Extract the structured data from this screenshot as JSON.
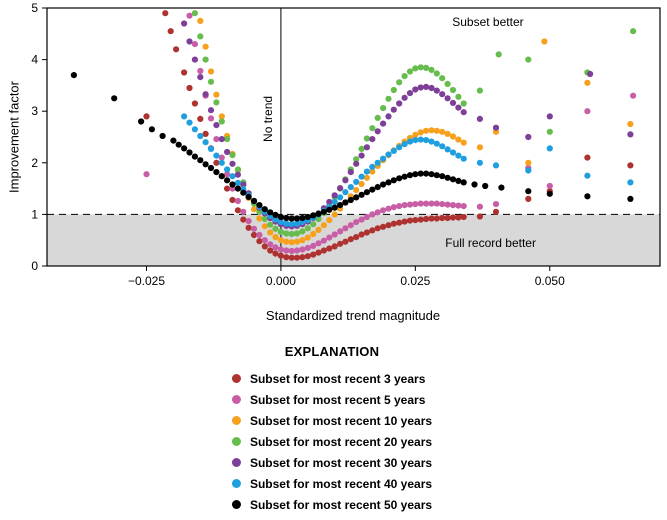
{
  "chart_data": {
    "type": "scatter",
    "title": "",
    "xlabel": "Standardized trend magnitude",
    "ylabel": "Improvement factor",
    "xlim": [
      -0.0435,
      0.0705
    ],
    "ylim": [
      0,
      5
    ],
    "xticks": {
      "values": [
        -0.025,
        0,
        0.025,
        0.05
      ],
      "labels": [
        "−0.025",
        "0.000",
        "0.025",
        "0.050"
      ]
    },
    "yticks": {
      "values": [
        0,
        1,
        2,
        3,
        4,
        5
      ],
      "labels": [
        "0",
        "1",
        "2",
        "3",
        "4",
        "5"
      ]
    },
    "shaded_band": {
      "y_from": 0,
      "y_to": 1,
      "color": "#d8d8d8",
      "meaning": "Full record better region"
    },
    "dashed_line_y": 1,
    "zero_line_x": 0,
    "annotations": [
      {
        "id": "subset-better",
        "text": "Subset better",
        "x": 0.0385,
        "y": 4.65,
        "rotate": 0,
        "dx": 0
      },
      {
        "id": "full-record-better",
        "text": "Full record better",
        "x": 0.039,
        "y": 0.37,
        "rotate": 0,
        "dx": 0
      },
      {
        "id": "no-trend",
        "text": "No trend",
        "x": 0,
        "y": 2.85,
        "rotate": -90,
        "dx": -9
      }
    ],
    "series": [
      {
        "name": "Subset for most recent 3 years",
        "color": "#ad3230",
        "grid": {
          "x0": -0.018,
          "step": 0.001,
          "y": [
            3.75,
            3.45,
            3.15,
            2.85,
            2.56,
            2.28,
            2.0,
            1.74,
            1.5,
            1.28,
            1.08,
            0.9,
            0.74,
            0.6,
            0.48,
            0.38,
            0.3,
            0.24,
            0.2,
            0.17,
            0.16,
            0.16,
            0.17,
            0.19,
            0.22,
            0.26,
            0.3,
            0.34,
            0.38,
            0.43,
            0.47,
            0.52,
            0.56,
            0.61,
            0.65,
            0.69,
            0.73,
            0.76,
            0.79,
            0.82,
            0.84,
            0.86,
            0.88,
            0.89,
            0.9,
            0.91,
            0.92,
            0.92,
            0.93,
            0.93,
            0.94,
            0.94,
            0.95
          ]
        },
        "extra": [
          [
            -0.0215,
            4.9
          ],
          [
            -0.0205,
            4.55
          ],
          [
            -0.0195,
            4.2
          ],
          [
            -0.025,
            2.9
          ],
          [
            0.037,
            0.96
          ],
          [
            0.04,
            1.05
          ],
          [
            0.046,
            1.3
          ],
          [
            0.05,
            1.45
          ],
          [
            0.057,
            2.1
          ],
          [
            0.065,
            1.95
          ]
        ]
      },
      {
        "name": "Subset for most recent 5 years",
        "color": "#c85fa6",
        "grid": {
          "x0": -0.017,
          "step": 0.001,
          "y": [
            4.85,
            4.3,
            3.78,
            3.3,
            2.86,
            2.46,
            2.1,
            1.78,
            1.5,
            1.26,
            1.05,
            0.87,
            0.72,
            0.6,
            0.5,
            0.42,
            0.36,
            0.32,
            0.3,
            0.29,
            0.3,
            0.32,
            0.35,
            0.39,
            0.44,
            0.49,
            0.55,
            0.61,
            0.67,
            0.73,
            0.79,
            0.85,
            0.9,
            0.95,
            1.0,
            1.04,
            1.08,
            1.11,
            1.14,
            1.16,
            1.18,
            1.19,
            1.2,
            1.21,
            1.21,
            1.21,
            1.21,
            1.2,
            1.19,
            1.18,
            1.17,
            1.16
          ]
        },
        "extra": [
          [
            -0.025,
            1.78
          ],
          [
            0.037,
            1.15
          ],
          [
            0.04,
            1.2
          ],
          [
            0.046,
            1.9
          ],
          [
            0.05,
            1.55
          ],
          [
            0.057,
            3.0
          ],
          [
            0.0655,
            3.3
          ]
        ]
      },
      {
        "name": "Subset for most recent 10 years",
        "color": "#f6a01b",
        "grid": {
          "x0": -0.015,
          "step": 0.001,
          "y": [
            4.75,
            4.25,
            3.77,
            3.32,
            2.9,
            2.52,
            2.17,
            1.85,
            1.57,
            1.32,
            1.1,
            0.92,
            0.77,
            0.65,
            0.56,
            0.5,
            0.47,
            0.46,
            0.47,
            0.5,
            0.55,
            0.62,
            0.7,
            0.79,
            0.89,
            1.0,
            1.11,
            1.23,
            1.35,
            1.47,
            1.59,
            1.71,
            1.83,
            1.94,
            2.05,
            2.15,
            2.24,
            2.33,
            2.41,
            2.48,
            2.54,
            2.59,
            2.62,
            2.63,
            2.62,
            2.6,
            2.56,
            2.51,
            2.45,
            2.39
          ]
        },
        "extra": [
          [
            0.037,
            2.3
          ],
          [
            0.04,
            2.6
          ],
          [
            0.046,
            2.0
          ],
          [
            0.049,
            4.35
          ],
          [
            0.057,
            3.55
          ],
          [
            0.065,
            2.75
          ]
        ]
      },
      {
        "name": "Subset for most recent 20 years",
        "color": "#66bd4e",
        "grid": {
          "x0": -0.016,
          "step": 0.001,
          "y": [
            4.9,
            4.45,
            4.0,
            3.57,
            3.17,
            2.8,
            2.46,
            2.15,
            1.87,
            1.62,
            1.4,
            1.21,
            1.05,
            0.91,
            0.8,
            0.72,
            0.66,
            0.63,
            0.62,
            0.63,
            0.67,
            0.73,
            0.81,
            0.91,
            1.03,
            1.17,
            1.33,
            1.5,
            1.68,
            1.87,
            2.07,
            2.27,
            2.47,
            2.67,
            2.87,
            3.06,
            3.24,
            3.41,
            3.56,
            3.68,
            3.77,
            3.83,
            3.85,
            3.84,
            3.8,
            3.73,
            3.64,
            3.53,
            3.41,
            3.28,
            3.15
          ]
        },
        "extra": [
          [
            0.037,
            3.4
          ],
          [
            0.0405,
            4.1
          ],
          [
            0.046,
            4.0
          ],
          [
            0.05,
            2.6
          ],
          [
            0.057,
            3.75
          ],
          [
            0.0655,
            4.55
          ]
        ]
      },
      {
        "name": "Subset for most recent 30 years",
        "color": "#7d3f98",
        "grid": {
          "x0": -0.018,
          "step": 0.001,
          "y": [
            4.7,
            4.35,
            4.0,
            3.66,
            3.33,
            3.02,
            2.73,
            2.46,
            2.21,
            1.98,
            1.77,
            1.58,
            1.41,
            1.26,
            1.13,
            1.02,
            0.93,
            0.86,
            0.81,
            0.78,
            0.77,
            0.78,
            0.81,
            0.86,
            0.93,
            1.02,
            1.12,
            1.24,
            1.37,
            1.51,
            1.66,
            1.82,
            1.98,
            2.14,
            2.3,
            2.46,
            2.61,
            2.76,
            2.9,
            3.03,
            3.15,
            3.26,
            3.35,
            3.42,
            3.46,
            3.47,
            3.45,
            3.4,
            3.33,
            3.25,
            3.16,
            3.07,
            2.98
          ]
        },
        "extra": [
          [
            0.037,
            2.85
          ],
          [
            0.04,
            2.68
          ],
          [
            0.046,
            2.5
          ],
          [
            0.05,
            2.9
          ],
          [
            0.0575,
            3.72
          ],
          [
            0.065,
            2.55
          ]
        ]
      },
      {
        "name": "Subset for most recent 40 years",
        "color": "#1f9fdf",
        "grid": {
          "x0": -0.018,
          "step": 0.001,
          "y": [
            2.9,
            2.78,
            2.65,
            2.52,
            2.4,
            2.27,
            2.14,
            2.0,
            1.87,
            1.74,
            1.61,
            1.49,
            1.37,
            1.26,
            1.15,
            1.05,
            0.97,
            0.9,
            0.85,
            0.82,
            0.81,
            0.82,
            0.85,
            0.89,
            0.94,
            1.0,
            1.07,
            1.15,
            1.24,
            1.33,
            1.43,
            1.53,
            1.63,
            1.73,
            1.83,
            1.92,
            2.0,
            2.08,
            2.16,
            2.23,
            2.3,
            2.36,
            2.41,
            2.44,
            2.45,
            2.44,
            2.41,
            2.37,
            2.32,
            2.26,
            2.2,
            2.14,
            2.08
          ]
        },
        "extra": [
          [
            0.037,
            2.0
          ],
          [
            0.04,
            1.95
          ],
          [
            0.046,
            1.85
          ],
          [
            0.05,
            2.28
          ],
          [
            0.057,
            1.75
          ],
          [
            0.065,
            1.62
          ]
        ]
      },
      {
        "name": "Subset for most recent 50 years",
        "color": "#000000",
        "grid": {
          "x0": -0.018,
          "step": 0.001,
          "y": [
            2.28,
            2.2,
            2.12,
            2.05,
            1.97,
            1.9,
            1.82,
            1.74,
            1.66,
            1.58,
            1.5,
            1.42,
            1.34,
            1.26,
            1.18,
            1.1,
            1.04,
            0.99,
            0.95,
            0.93,
            0.92,
            0.92,
            0.93,
            0.95,
            0.98,
            1.01,
            1.05,
            1.09,
            1.13,
            1.18,
            1.23,
            1.28,
            1.33,
            1.38,
            1.43,
            1.48,
            1.53,
            1.58,
            1.62,
            1.66,
            1.7,
            1.73,
            1.76,
            1.78,
            1.79,
            1.79,
            1.78,
            1.76,
            1.74,
            1.71,
            1.68,
            1.65,
            1.62
          ]
        },
        "extra": [
          [
            -0.0385,
            3.7
          ],
          [
            -0.031,
            3.25
          ],
          [
            -0.026,
            2.8
          ],
          [
            -0.024,
            2.65
          ],
          [
            -0.022,
            2.52
          ],
          [
            -0.02,
            2.43
          ],
          [
            -0.019,
            2.35
          ],
          [
            0.036,
            1.58
          ],
          [
            0.038,
            1.55
          ],
          [
            0.041,
            1.52
          ],
          [
            0.046,
            1.45
          ],
          [
            0.05,
            1.4
          ],
          [
            0.057,
            1.35
          ],
          [
            0.065,
            1.3
          ]
        ]
      }
    ]
  },
  "legend": {
    "title": "EXPLANATION",
    "items": [
      {
        "label": "Subset for most recent 3 years",
        "color": "#ad3230"
      },
      {
        "label": "Subset for most recent 5 years",
        "color": "#c85fa6"
      },
      {
        "label": "Subset for most recent 10 years",
        "color": "#f6a01b"
      },
      {
        "label": "Subset for most recent 20 years",
        "color": "#66bd4e"
      },
      {
        "label": "Subset for most recent 30 years",
        "color": "#7d3f98"
      },
      {
        "label": "Subset for most recent 40 years",
        "color": "#1f9fdf"
      },
      {
        "label": "Subset for most recent 50 years",
        "color": "#000000"
      }
    ]
  }
}
